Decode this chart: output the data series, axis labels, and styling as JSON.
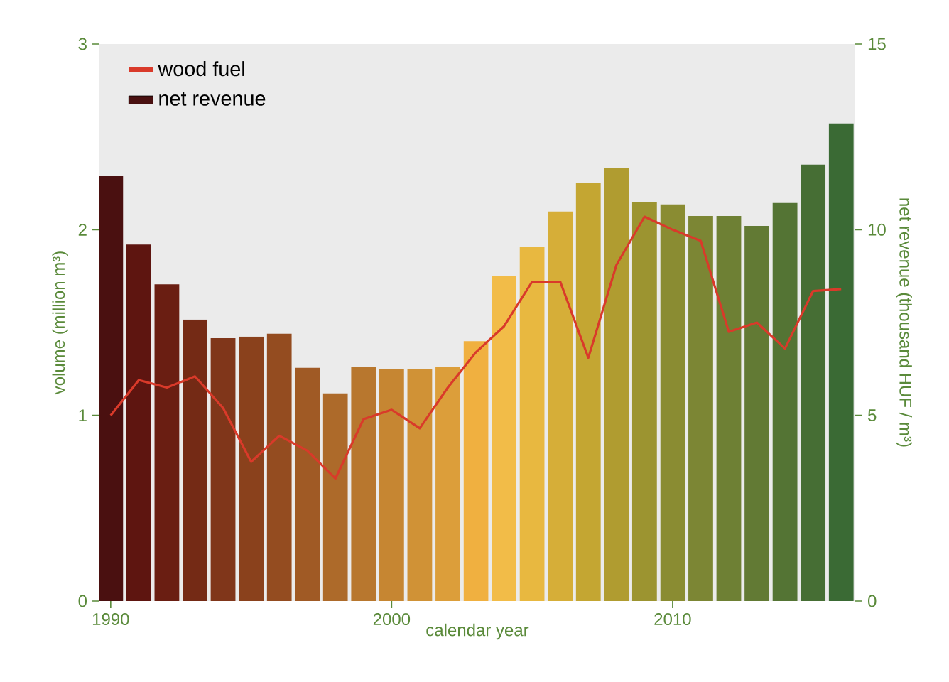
{
  "chart_data": {
    "type": "bar",
    "xlabel": "calendar year",
    "ylabel": "volume (million m³)",
    "y2label": "net revenue (thousand HUF / m³)",
    "x": [
      1990,
      1991,
      1992,
      1993,
      1994,
      1995,
      1996,
      1997,
      1998,
      1999,
      2000,
      2001,
      2002,
      2003,
      2004,
      2005,
      2006,
      2007,
      2008,
      2009,
      2010,
      2011,
      2012,
      2013,
      2014,
      2015,
      2016
    ],
    "series": [
      {
        "name": "wood fuel",
        "type": "line",
        "color": "#d93a2a",
        "values": [
          1.0,
          1.19,
          1.15,
          1.21,
          1.04,
          0.75,
          0.89,
          0.81,
          0.66,
          0.98,
          1.03,
          0.93,
          1.15,
          1.34,
          1.48,
          1.72,
          1.72,
          1.31,
          1.81,
          2.07,
          2.0,
          1.94,
          1.45,
          1.5,
          1.36,
          1.67,
          1.68
        ]
      },
      {
        "name": "net revenue",
        "axis": "y2",
        "color": "#4a1010",
        "colors": [
          "#4a1010",
          "#5e1510",
          "#6a1e12",
          "#742a15",
          "#80361a",
          "#8a411c",
          "#944c20",
          "#a05a25",
          "#ad6a2a",
          "#b8772e",
          "#c68632",
          "#d09236",
          "#dc9e3a",
          "#f0b040",
          "#f2bc48",
          "#e8b840",
          "#d6ae38",
          "#c4a632",
          "#b09c30",
          "#9c9430",
          "#8a8c32",
          "#7c8634",
          "#6e8034",
          "#627a34",
          "#547434",
          "#466e34",
          "#3a6a34"
        ],
        "values": [
          11.44,
          9.6,
          8.53,
          7.58,
          7.08,
          7.12,
          7.2,
          6.28,
          5.59,
          6.31,
          6.24,
          6.24,
          6.31,
          7.0,
          8.76,
          9.53,
          10.49,
          11.25,
          11.67,
          10.75,
          10.68,
          10.37,
          10.37,
          10.1,
          10.72,
          11.75,
          12.86
        ]
      }
    ],
    "xlim": [
      1989.6,
      2016.5
    ],
    "xticks": [
      1990,
      2000,
      2010
    ],
    "ylim": [
      0,
      3
    ],
    "yticks": [
      0,
      1,
      2,
      3
    ],
    "y2lim": [
      0,
      15
    ],
    "y2ticks": [
      0,
      5,
      10,
      15
    ],
    "legend": "top left",
    "grid": false
  }
}
